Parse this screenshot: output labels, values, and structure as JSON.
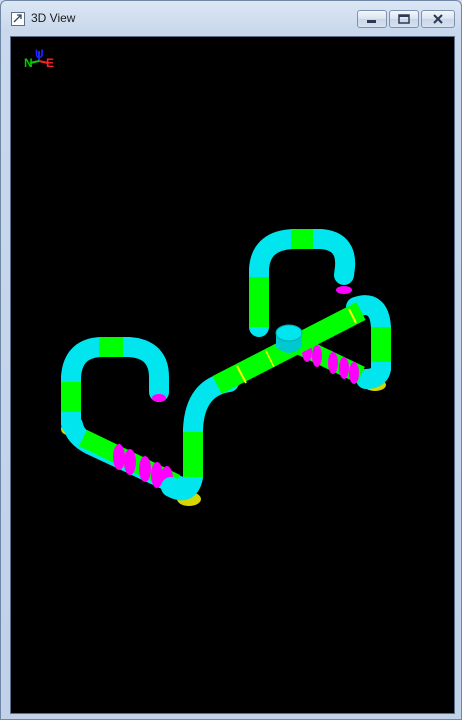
{
  "window": {
    "title": "3D View",
    "buttons": {
      "minimize": "minimize-icon",
      "maximize": "restore-icon",
      "close": "close-icon"
    }
  },
  "axis_triad": {
    "north_label": "N",
    "up_label": "U",
    "east_label": "E",
    "colors": {
      "north": "#00cc00",
      "up": "#2222ff",
      "east": "#ff2020"
    }
  },
  "scene": {
    "background": "#000000",
    "colors": {
      "pipe": "#00ff00",
      "bend": "#00e5ee",
      "expansion_joint": "#ff00ff",
      "support": "#d8d800",
      "weld": "#ffff00"
    }
  }
}
